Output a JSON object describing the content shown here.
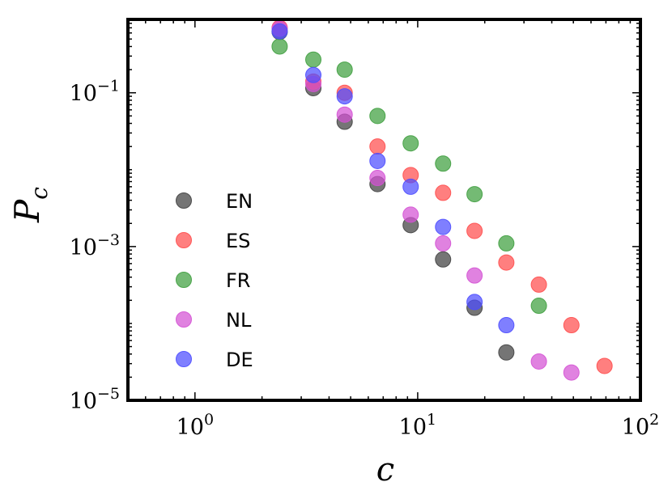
{
  "chart_data": {
    "type": "scatter",
    "title": "",
    "xlabel": "c",
    "ylabel": "P",
    "ylabel_sub": "c",
    "xscale": "log",
    "yscale": "log",
    "xlim": [
      0.5,
      100
    ],
    "ylim": [
      1e-05,
      0.9
    ],
    "legend_position": "center-left",
    "grid": false,
    "x_ticks": [
      {
        "value": 1,
        "base": "10",
        "exp": "0"
      },
      {
        "value": 10,
        "base": "10",
        "exp": "1"
      },
      {
        "value": 100,
        "base": "10",
        "exp": "2"
      }
    ],
    "y_ticks": [
      {
        "value": 0.1,
        "base": "10",
        "exp": "−1"
      },
      {
        "value": 0.001,
        "base": "10",
        "exp": "−3"
      },
      {
        "value": 1e-05,
        "base": "10",
        "exp": "−5"
      }
    ],
    "series": [
      {
        "name": "EN",
        "color": "#404040",
        "points": [
          [
            2.4,
            0.62
          ],
          [
            3.4,
            0.115
          ],
          [
            4.7,
            0.042
          ],
          [
            6.6,
            0.0065
          ],
          [
            9.3,
            0.0019
          ],
          [
            13,
            0.00068
          ],
          [
            18,
            0.00016
          ],
          [
            25,
            4.2e-05
          ]
        ]
      },
      {
        "name": "ES",
        "color": "#ff4d4d",
        "points": [
          [
            2.4,
            0.7
          ],
          [
            3.4,
            0.14
          ],
          [
            4.7,
            0.1
          ],
          [
            6.6,
            0.02
          ],
          [
            9.3,
            0.0085
          ],
          [
            13,
            0.005
          ],
          [
            18,
            0.0016
          ],
          [
            25,
            0.00062
          ],
          [
            35,
            0.00032
          ],
          [
            49,
            9.5e-05
          ],
          [
            69,
            2.8e-05
          ]
        ]
      },
      {
        "name": "FR",
        "color": "#3f9f3f",
        "points": [
          [
            2.4,
            0.4
          ],
          [
            3.4,
            0.27
          ],
          [
            4.7,
            0.2
          ],
          [
            6.6,
            0.05
          ],
          [
            9.3,
            0.022
          ],
          [
            13,
            0.012
          ],
          [
            18,
            0.0048
          ],
          [
            25,
            0.0011
          ],
          [
            35,
            0.00017
          ]
        ]
      },
      {
        "name": "NL",
        "color": "#d452d4",
        "points": [
          [
            2.4,
            0.68
          ],
          [
            3.4,
            0.13
          ],
          [
            4.7,
            0.052
          ],
          [
            6.6,
            0.0078
          ],
          [
            9.3,
            0.0026
          ],
          [
            13,
            0.0011
          ],
          [
            18,
            0.00042
          ],
          [
            35,
            3.2e-05
          ],
          [
            49,
            2.3e-05
          ]
        ]
      },
      {
        "name": "DE",
        "color": "#4d4dff",
        "points": [
          [
            2.4,
            0.63
          ],
          [
            3.4,
            0.17
          ],
          [
            4.7,
            0.09
          ],
          [
            6.6,
            0.013
          ],
          [
            9.3,
            0.006
          ],
          [
            13,
            0.0018
          ],
          [
            18,
            0.00019
          ],
          [
            25,
            9.5e-05
          ]
        ]
      }
    ]
  }
}
